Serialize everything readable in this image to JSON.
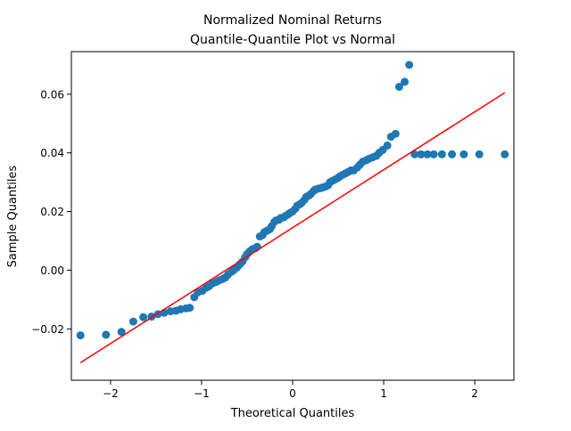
{
  "chart_data": {
    "type": "scatter",
    "title": "Normalized Nominal Returns",
    "subtitle": "Quantile-Quantile Plot vs Normal",
    "xlabel": "Theoretical Quantiles",
    "ylabel": "Sample Quantiles",
    "xlim": [
      -2.43,
      2.43
    ],
    "ylim": [
      -0.0375,
      0.0745
    ],
    "x_ticks": [
      -2,
      -1,
      0,
      1,
      2
    ],
    "x_tick_labels": [
      "−2",
      "−1",
      "0",
      "1",
      "2"
    ],
    "y_ticks": [
      -0.02,
      0.0,
      0.02,
      0.04,
      0.06
    ],
    "y_tick_labels": [
      "−0.02",
      "0.00",
      "0.02",
      "0.04",
      "0.06"
    ],
    "grid": false,
    "colors": {
      "points": "#1f77b4",
      "reference_line": "#ff0000"
    },
    "reference_line": {
      "x": [
        -2.33,
        2.33
      ],
      "y": [
        -0.0315,
        0.0605
      ]
    },
    "points": {
      "x": [
        -2.33,
        -2.05,
        -1.88,
        -1.75,
        -1.64,
        -1.55,
        -1.48,
        -1.41,
        -1.34,
        -1.28,
        -1.23,
        -1.17,
        -1.13,
        -1.08,
        -1.04,
        -0.99,
        -0.95,
        -0.92,
        -0.88,
        -0.84,
        -0.81,
        -0.77,
        -0.74,
        -0.71,
        -0.67,
        -0.64,
        -0.61,
        -0.58,
        -0.55,
        -0.52,
        -0.5,
        -0.47,
        -0.44,
        -0.41,
        -0.39,
        -0.36,
        -0.33,
        -0.31,
        -0.28,
        -0.25,
        -0.23,
        -0.2,
        -0.18,
        -0.15,
        -0.13,
        -0.1,
        -0.08,
        -0.05,
        -0.03,
        0.0,
        0.03,
        0.05,
        0.08,
        0.1,
        0.13,
        0.15,
        0.18,
        0.2,
        0.23,
        0.25,
        0.28,
        0.31,
        0.33,
        0.36,
        0.39,
        0.41,
        0.44,
        0.47,
        0.5,
        0.52,
        0.55,
        0.58,
        0.61,
        0.64,
        0.67,
        0.71,
        0.74,
        0.77,
        0.81,
        0.84,
        0.88,
        0.92,
        0.95,
        0.99,
        1.04,
        1.08,
        1.13,
        1.17,
        1.23,
        1.28,
        1.34,
        1.41,
        1.48,
        1.55,
        1.64,
        1.75,
        1.88,
        2.05,
        2.33
      ],
      "y": [
        -0.0222,
        -0.022,
        -0.021,
        -0.0175,
        -0.016,
        -0.0158,
        -0.015,
        -0.0145,
        -0.014,
        -0.0138,
        -0.0133,
        -0.013,
        -0.0128,
        -0.0092,
        -0.0075,
        -0.007,
        -0.006,
        -0.0055,
        -0.0045,
        -0.004,
        -0.0035,
        -0.003,
        -0.0025,
        -0.0015,
        -0.0005,
        0.0002,
        0.001,
        0.002,
        0.003,
        0.0045,
        0.0055,
        0.0065,
        0.0072,
        0.0075,
        0.008,
        0.0115,
        0.012,
        0.013,
        0.0135,
        0.014,
        0.015,
        0.0165,
        0.017,
        0.0172,
        0.0178,
        0.018,
        0.0185,
        0.019,
        0.0195,
        0.02,
        0.021,
        0.022,
        0.0225,
        0.023,
        0.024,
        0.025,
        0.0255,
        0.026,
        0.027,
        0.0275,
        0.0278,
        0.028,
        0.0282,
        0.0285,
        0.029,
        0.03,
        0.0305,
        0.031,
        0.0315,
        0.032,
        0.0325,
        0.033,
        0.0335,
        0.034,
        0.034,
        0.035,
        0.036,
        0.037,
        0.0375,
        0.038,
        0.0385,
        0.039,
        0.04,
        0.041,
        0.0425,
        0.0455,
        0.0465,
        0.0625,
        0.0642,
        0.07,
        0.0395,
        0.0395,
        0.0395,
        0.0395,
        0.0395,
        0.0395,
        0.0395,
        0.0395,
        0.0395
      ]
    }
  }
}
